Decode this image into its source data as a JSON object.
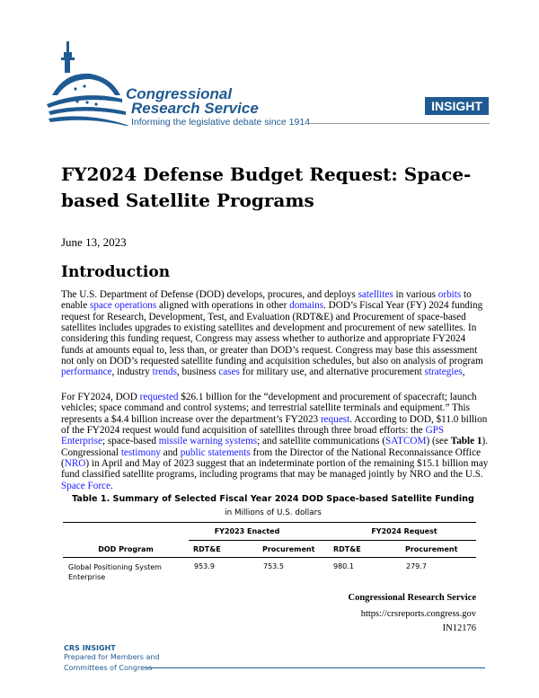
{
  "header": {
    "logo_line1": "Congressional",
    "logo_line2": "Research Service",
    "tagline": "Informing the legislative debate since 1914",
    "badge": "INSIGHT",
    "brand_color": "#1f5b92"
  },
  "title": "FY2024 Defense Budget Request: Space-based Satellite Programs",
  "date": "June 13, 2023",
  "section_heading": "Introduction",
  "paragraphs": [
    [
      {
        "t": "The U.S. Department of Defense (DOD) develops, procures, and deploys "
      },
      {
        "t": "satellites",
        "link": true
      },
      {
        "t": " in various "
      },
      {
        "t": "orbits",
        "link": true
      },
      {
        "t": " to enable "
      },
      {
        "t": "space operations",
        "link": true
      },
      {
        "t": " aligned with operations in other "
      },
      {
        "t": "domains",
        "link": true
      },
      {
        "t": ". DOD’s Fiscal Year (FY) 2024 funding request for Research, Development, Test, and Evaluation (RDT&E) and Procurement of space-based satellites includes upgrades to existing satellites and development and procurement of new satellites. In considering this funding request, Congress may assess whether to authorize and appropriate FY2024 funds at amounts equal to, less than, or greater than DOD’s request. Congress may base this assessment not only on DOD’s requested satellite funding and acquisition schedules, but also on analysis of program "
      },
      {
        "t": "performance",
        "link": true
      },
      {
        "t": ", industry "
      },
      {
        "t": "trends",
        "link": true
      },
      {
        "t": ", business "
      },
      {
        "t": "cases",
        "link": true
      },
      {
        "t": " for military use, and alternative procurement "
      },
      {
        "t": "strategies",
        "link": true
      },
      {
        "t": ","
      }
    ],
    [
      {
        "t": "For FY2024, DOD "
      },
      {
        "t": "requested",
        "link": true
      },
      {
        "t": " $26.1 billion for the “development and procurement of spacecraft; launch vehicles; space command and control systems; and terrestrial satellite terminals and equipment.” This represents a $4.4 billion increase over the department’s FY2023 "
      },
      {
        "t": "request",
        "link": true
      },
      {
        "t": ". According to DOD, $11.0 billion of the FY2024 request would fund acquisition of satellites through three broad efforts: the "
      },
      {
        "t": "GPS Enterprise",
        "link": true
      },
      {
        "t": "; space-based "
      },
      {
        "t": "missile warning systems",
        "link": true
      },
      {
        "t": "; and satellite communications ("
      },
      {
        "t": "SATCOM",
        "link": true
      },
      {
        "t": ") (see "
      },
      {
        "t": "Table 1",
        "bold": true
      },
      {
        "t": "). Congressional "
      },
      {
        "t": "testimony",
        "link": true
      },
      {
        "t": " and "
      },
      {
        "t": "public statements",
        "link": true
      },
      {
        "t": " from the Director of the National Reconnaissance Office ("
      },
      {
        "t": "NRO",
        "link": true
      },
      {
        "t": ") in April and May of 2023 suggest that an indeterminate portion of the remaining $15.1 billion may fund classified satellite programs, including programs that may be managed jointly by NRO and the U.S. "
      },
      {
        "t": "Space Force",
        "link": true
      },
      {
        "t": "."
      }
    ]
  ],
  "table": {
    "title": "Table 1. Summary of Selected Fiscal Year 2024 DOD Space-based Satellite Funding",
    "subtitle": "in Millions of U.S. dollars",
    "group_headers": [
      "FY2023 Enacted",
      "FY2024 Request"
    ],
    "columns": [
      "DOD Program",
      "RDT&E",
      "Procurement",
      "RDT&E",
      "Procurement"
    ],
    "rows": [
      [
        "Global Positioning System Enterprise",
        "953.9",
        "753.5",
        "980.1",
        "279.7"
      ]
    ]
  },
  "footer": {
    "org": "Congressional Research Service",
    "url": "https://crsreports.congress.gov",
    "id": "IN12176",
    "crs_insight": "CRS INSIGHT",
    "prepared1": "Prepared for Members and",
    "prepared2": "Committees of Congress"
  }
}
